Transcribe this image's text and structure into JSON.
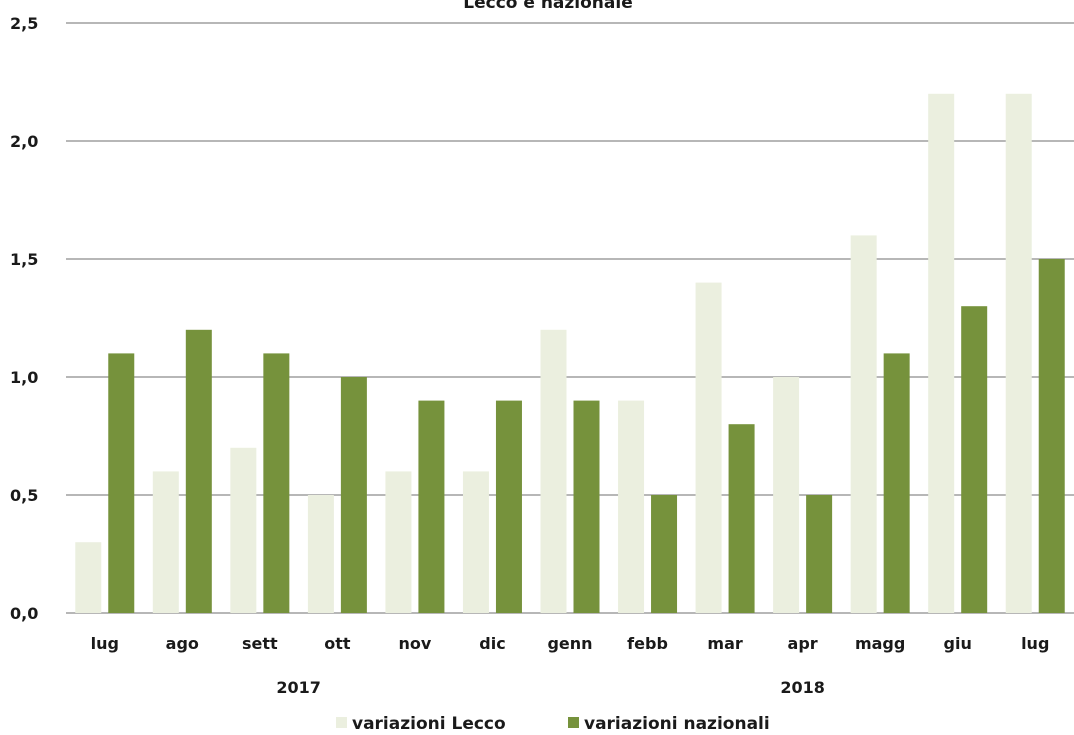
{
  "chart_data": {
    "type": "bar",
    "title": "Lecco e nazionale",
    "categories": [
      "lug",
      "ago",
      "sett",
      "ott",
      "nov",
      "dic",
      "genn",
      "febb",
      "mar",
      "apr",
      "magg",
      "giu",
      "lug"
    ],
    "year_groups": [
      {
        "label": "2017",
        "from": 0,
        "to": 5
      },
      {
        "label": "2018",
        "from": 6,
        "to": 12
      }
    ],
    "series": [
      {
        "name": "variazioni Lecco",
        "color": "#ebefdf",
        "values": [
          0.3,
          0.6,
          0.7,
          0.5,
          0.6,
          0.6,
          1.2,
          0.9,
          1.4,
          1.0,
          1.6,
          2.2,
          2.2
        ]
      },
      {
        "name": "variazioni nazionali",
        "color": "#76923c",
        "values": [
          1.1,
          1.2,
          1.1,
          1.0,
          0.9,
          0.9,
          0.9,
          0.5,
          0.8,
          0.5,
          1.1,
          1.3,
          1.5
        ]
      }
    ],
    "yticks": [
      "0,0",
      "0,5",
      "1,0",
      "1,5",
      "2,0",
      "2,5"
    ],
    "ytick_values": [
      0,
      0.5,
      1.0,
      1.5,
      2.0,
      2.5
    ],
    "ylim": [
      0,
      2.5
    ],
    "grid": true,
    "legend_position": "bottom"
  }
}
